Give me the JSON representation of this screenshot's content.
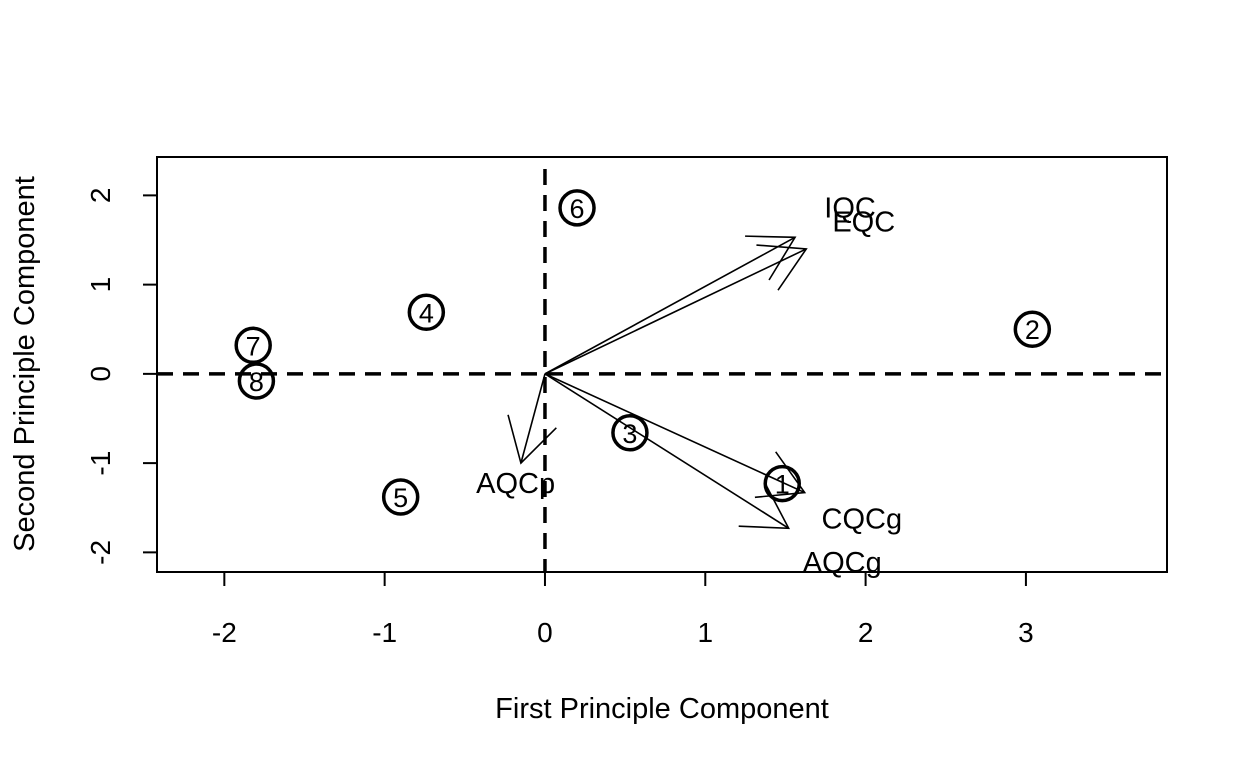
{
  "chart_data": {
    "type": "scatter",
    "subtype": "biplot",
    "xlabel": "First Principle Component",
    "ylabel": "Second Principle Component",
    "xlim": [
      -2.42,
      3.88
    ],
    "ylim": [
      -2.22,
      2.43
    ],
    "x_ticks": [
      -2,
      -1,
      0,
      1,
      2,
      3
    ],
    "y_ticks": [
      -2,
      -1,
      0,
      1,
      2
    ],
    "x_tick_labels": [
      "-2",
      "-1",
      "0",
      "1",
      "2",
      "3"
    ],
    "y_tick_labels": [
      "-2",
      "-1",
      "0",
      "1",
      "2"
    ],
    "reference_lines": {
      "x": 0,
      "y": 0,
      "style": "dashed"
    },
    "grid": false,
    "points": [
      {
        "label": "1",
        "x": 1.48,
        "y": -1.23
      },
      {
        "label": "2",
        "x": 3.04,
        "y": 0.5
      },
      {
        "label": "3",
        "x": 0.53,
        "y": -0.66
      },
      {
        "label": "4",
        "x": -0.74,
        "y": 0.69
      },
      {
        "label": "5",
        "x": -0.9,
        "y": -1.38
      },
      {
        "label": "6",
        "x": 0.2,
        "y": 1.86
      },
      {
        "label": "7",
        "x": -1.82,
        "y": 0.32
      },
      {
        "label": "8",
        "x": -1.8,
        "y": -0.08
      }
    ],
    "loadings": [
      {
        "label": "IQC",
        "x": 1.56,
        "y": 1.53
      },
      {
        "label": "EQC",
        "x": 1.63,
        "y": 1.4
      },
      {
        "label": "AQCp",
        "x": -0.15,
        "y": -1.0
      },
      {
        "label": "CQCg",
        "x": 1.62,
        "y": -1.33
      },
      {
        "label": "AQCg",
        "x": 1.52,
        "y": -1.73
      }
    ]
  }
}
